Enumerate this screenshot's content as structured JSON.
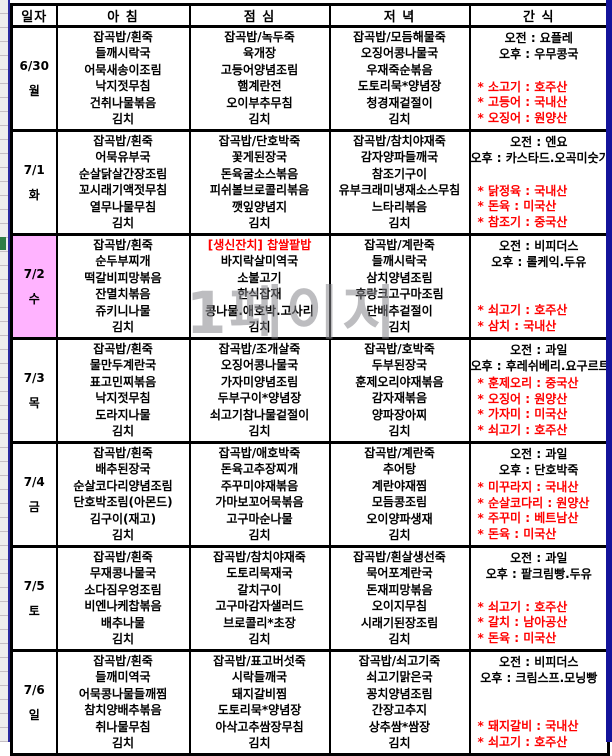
{
  "watermark": "1페이지",
  "colors": {
    "origin_red": "#ff0000",
    "highlight_pink": "#ffb3ff",
    "page_break_blue": "#14149b",
    "grid_black": "#000000"
  },
  "header": {
    "date": "일자",
    "breakfast": "아 침",
    "lunch": "점 심",
    "dinner": "저 녁",
    "snack": "간 식"
  },
  "days": [
    {
      "date": "6/30",
      "weekday": "월",
      "highlight": false,
      "breakfast": [
        "잡곡밥/흰죽",
        "들깨시락국",
        "어묵새송이조림",
        "낙지젓무침",
        "건취나물볶음",
        "김치"
      ],
      "lunch": [
        "잡곡밥/녹두죽",
        "육개장",
        "고등어양념조림",
        "햄계란전",
        "오이부추무침",
        "김치"
      ],
      "dinner": [
        "잡곡밥/모듬해물죽",
        "오징어콩나물국",
        "우재죽순볶음",
        "도토리묵*양념장",
        "청경재겉절이",
        "김치"
      ],
      "snack": [
        "오전 : 요플레",
        "오후 : 우무콩국"
      ],
      "origins": [
        "* 소고기 : 호주산",
        "* 고등어 : 국내산",
        "* 오징어 : 원양산"
      ]
    },
    {
      "date": "7/1",
      "weekday": "화",
      "highlight": false,
      "breakfast": [
        "잡곡밥/흰죽",
        "어묵유부국",
        "순살닭살간장조림",
        "꼬시래기액젓무침",
        "열무나물무침",
        "김치"
      ],
      "lunch": [
        "잡곡밥/단호박죽",
        "꽃게된장국",
        "돈육굴소스볶음",
        "피쉬볼브로콜리볶음",
        "깻잎양념지",
        "김치"
      ],
      "dinner": [
        "잡곡밥/참치야재죽",
        "감자양파들깨국",
        "참조기구이",
        "유부크래미냉재소스무침",
        "느타리볶음",
        "김치"
      ],
      "snack": [
        "오전 : 엔요",
        "오후 : 카스타드.오곡미숫가루"
      ],
      "origins": [
        "* 닭정육 : 국내산",
        "* 돈육 : 미국산",
        "* 참조기 : 중국산"
      ]
    },
    {
      "date": "7/2",
      "weekday": "수",
      "highlight": true,
      "breakfast": [
        "잡곡밥/흰죽",
        "순두부찌개",
        "떡갈비피망볶음",
        "잔멸치볶음",
        "쥬키니나물",
        "김치"
      ],
      "lunch_special": "[생신잔치] 찹쌀팥밥",
      "lunch": [
        "바지락살미역국",
        "소불고기",
        "한식잡재",
        "콩나물.애호박.고사리",
        "김치"
      ],
      "dinner": [
        "잡곡밥/계란죽",
        "들깨시락국",
        "삼치양념조림",
        "후랑크고구마조림",
        "단배추겉절이",
        "김치"
      ],
      "snack": [
        "오전 : 비피더스",
        "오후 : 롤케익.두유"
      ],
      "origins": [
        "* 쇠고기 : 호주산",
        "* 삼치 : 국내산"
      ]
    },
    {
      "date": "7/3",
      "weekday": "목",
      "highlight": false,
      "breakfast": [
        "잡곡밥/흰죽",
        "물만두계란국",
        "표고민찌볶음",
        "낙지젓무침",
        "도라지나물",
        "김치"
      ],
      "lunch": [
        "잡곡밥/조개살죽",
        "오징어콩나물국",
        "가자미양념조림",
        "두부구이*양념장",
        "쇠고기참나물겉절이",
        "김치"
      ],
      "dinner": [
        "잡곡밥/호박죽",
        "두부된장국",
        "훈제오리야재볶음",
        "감자재볶음",
        "양파장아찌",
        "김치"
      ],
      "snack": [
        "오전 : 과일",
        "오후 : 후레쉬베리.요구르트"
      ],
      "origins": [
        "* 훈제오리 : 중국산",
        "* 오징어 : 원양산",
        "* 가자미 : 미국산",
        "* 쇠고기 : 호주산"
      ]
    },
    {
      "date": "7/4",
      "weekday": "금",
      "highlight": false,
      "breakfast": [
        "잡곡밥/흰죽",
        "배추된장국",
        "순살코다리양념조림",
        "단호박조림(아몬드)",
        "김구이(재고)",
        "김치"
      ],
      "lunch": [
        "잡곡밥/애호박죽",
        "돈육고추장찌개",
        "주꾸미야재볶음",
        "가마보꼬어묵볶음",
        "고구마순나물",
        "김치"
      ],
      "dinner": [
        "잡곡밥/계란죽",
        "추어탕",
        "계란야재찜",
        "모듬콩조림",
        "오이양파생재",
        "김치"
      ],
      "snack": [
        "오전 : 과일",
        "오후 : 단호박죽"
      ],
      "origins": [
        "* 미꾸라지 : 국내산",
        "* 순살코다리 : 원양산",
        "* 주꾸미 : 베트남산",
        "* 돈육 : 미국산"
      ]
    },
    {
      "date": "7/5",
      "weekday": "토",
      "highlight": false,
      "breakfast": [
        "잡곡밥/흰죽",
        "무재콩나물국",
        "소다짐우엉조림",
        "비엔나케찹볶음",
        "배추나물",
        "김치"
      ],
      "lunch": [
        "잡곡밥/참치야재죽",
        "도토리묵재국",
        "갈치구이",
        "고구마감자샐러드",
        "브로콜리*초장",
        "김치"
      ],
      "dinner": [
        "잡곡밥/흰살생선죽",
        "묵어포계란국",
        "돈재피망볶음",
        "오이지무침",
        "시래기된장조림",
        "김치"
      ],
      "snack": [
        "오전 : 과일",
        "오후 : 팥크림빵.두유"
      ],
      "origins": [
        "* 쇠고기 : 호주산",
        "* 갈치 : 남아공산",
        "* 돈육 : 미국산"
      ]
    },
    {
      "date": "7/6",
      "weekday": "일",
      "highlight": false,
      "breakfast": [
        "잡곡밥/흰죽",
        "들깨미역국",
        "어묵콩나물들깨찜",
        "참치양배추볶음",
        "취나물무침",
        "김치"
      ],
      "lunch": [
        "잡곡밥/표고버섯죽",
        "시락들깨국",
        "돼지갈비찜",
        "도토리묵*양념장",
        "아삭고추쌈장무침",
        "김치"
      ],
      "dinner": [
        "잡곡밥/쇠고기죽",
        "쇠고기맑은국",
        "꽁치양념조림",
        "간장고추지",
        "상추쌈*쌈장",
        "김치"
      ],
      "snack": [
        "오전 : 비피더스",
        "오후 : 크림스프.모닝빵"
      ],
      "origins": [
        "* 돼지갈비 : 국내산",
        "* 쇠고기 : 호주산"
      ]
    }
  ]
}
